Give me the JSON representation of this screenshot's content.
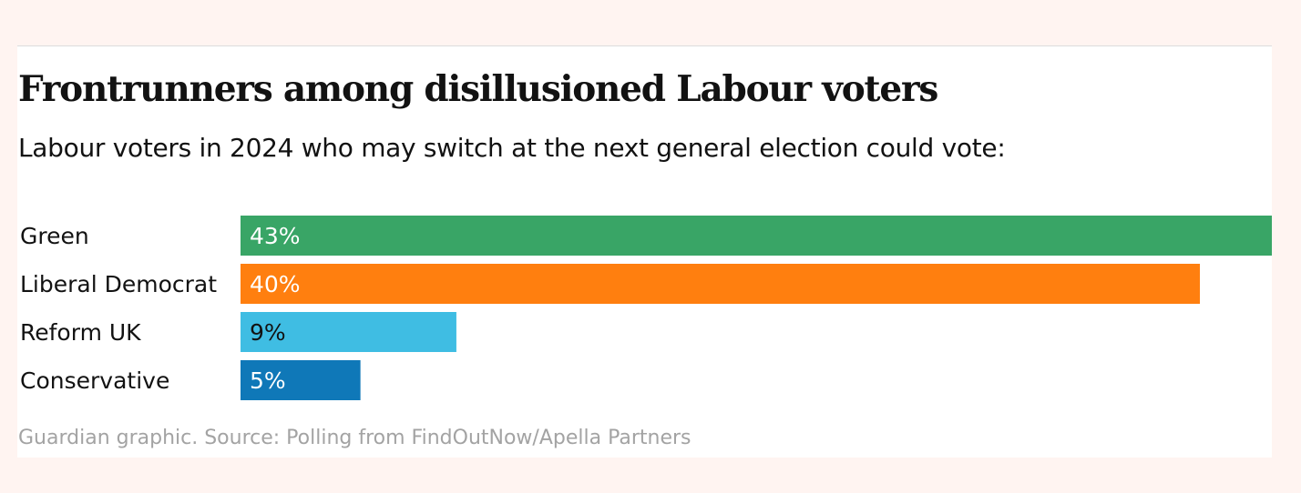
{
  "title": "Frontrunners among disillusioned Labour voters",
  "subtitle": "Labour voters in 2024 who may switch at the next general election could vote:",
  "source": "Guardian graphic. Source: Polling from FindOutNow/Apella Partners",
  "chart_data": {
    "type": "bar",
    "orientation": "horizontal",
    "categories": [
      "Green",
      "Liberal Democrat",
      "Reform UK",
      "Conservative"
    ],
    "values": [
      43,
      40,
      9,
      5
    ],
    "data_labels": [
      "43%",
      "40%",
      "9%",
      "5%"
    ],
    "colors": [
      "#39a566",
      "#ff7f0f",
      "#3fbde3",
      "#0f78b8"
    ],
    "label_colors": [
      "#ffffff",
      "#ffffff",
      "#121212",
      "#ffffff"
    ],
    "xlim": [
      0,
      43
    ],
    "grid": false,
    "legend": "none"
  }
}
